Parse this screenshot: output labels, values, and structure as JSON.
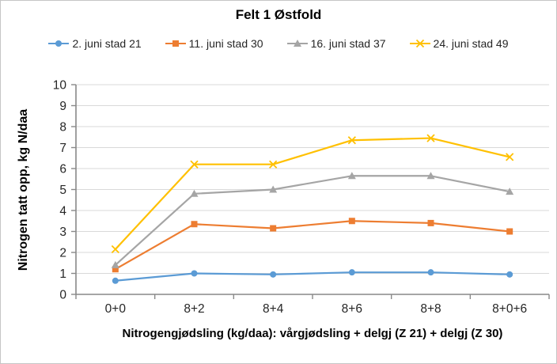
{
  "chart": {
    "title": "Felt 1 Østfold"
  },
  "chart_data": {
    "type": "line",
    "title": "Felt 1 Østfold",
    "xlabel": "Nitrogengjødsling (kg/daa): vårgjødsling + delgj (Z 21) + delgj (Z 30)",
    "ylabel": "Nitrogen tatt opp, kg N/daa",
    "categories": [
      "0+0",
      "8+2",
      "8+4",
      "8+6",
      "8+8",
      "8+0+6"
    ],
    "series": [
      {
        "name": "2. juni stad 21",
        "color": "#5B9BD5",
        "marker": "circle",
        "values": [
          0.65,
          1.0,
          0.95,
          1.05,
          1.05,
          0.95
        ]
      },
      {
        "name": "11. juni stad 30",
        "color": "#ED7D31",
        "marker": "square",
        "values": [
          1.2,
          3.35,
          3.15,
          3.5,
          3.4,
          3.0
        ]
      },
      {
        "name": "16. juni stad 37",
        "color": "#A5A5A5",
        "marker": "triangle",
        "values": [
          1.4,
          4.8,
          5.0,
          5.65,
          5.65,
          4.9
        ]
      },
      {
        "name": "24. juni stad 49",
        "color": "#FFC000",
        "marker": "x",
        "values": [
          2.15,
          6.2,
          6.2,
          7.35,
          7.45,
          6.55
        ]
      }
    ],
    "ylim": [
      0,
      10
    ],
    "yticks": [
      0,
      1,
      2,
      3,
      4,
      5,
      6,
      7,
      8,
      9,
      10
    ],
    "grid": true,
    "legend_position": "top",
    "colors": {
      "gridline": "#D9D9D9",
      "axis": "#898989",
      "tick_label": "#262626"
    }
  }
}
